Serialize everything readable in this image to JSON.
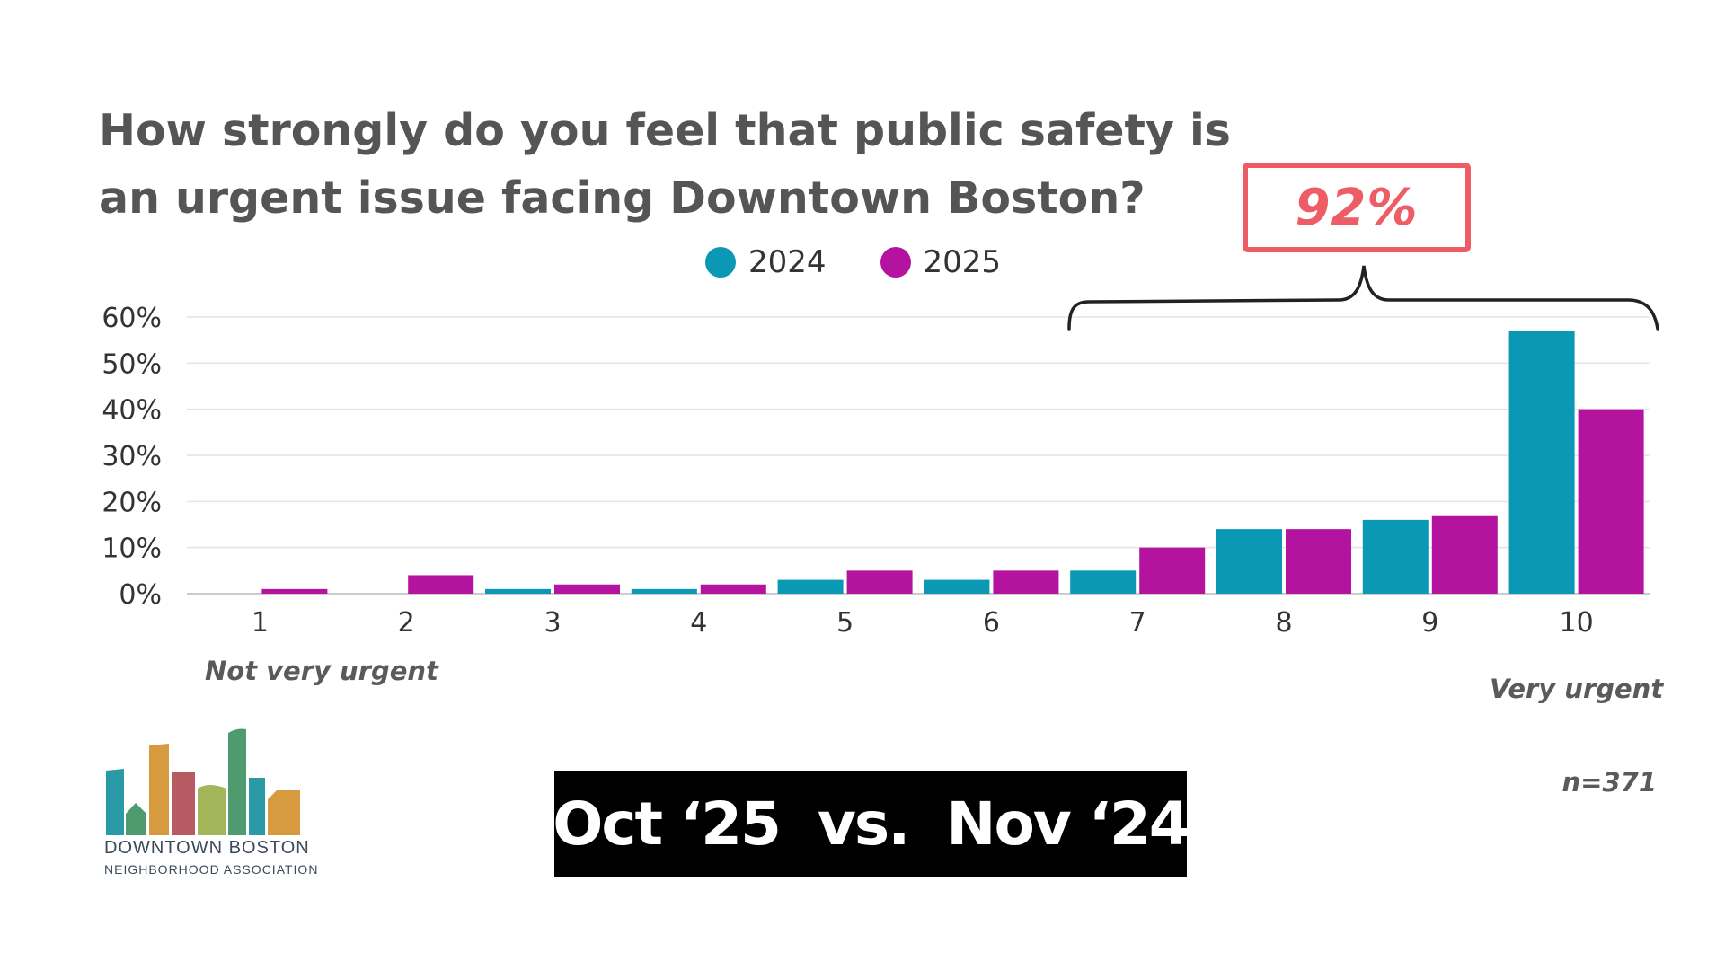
{
  "chart_data": {
    "type": "bar",
    "title": "How strongly do you feel that public safety is an urgent issue facing Downtown Boston?",
    "title_lines": [
      "How strongly do you feel that public safety is",
      "an urgent issue facing Downtown Boston?"
    ],
    "categories": [
      "1",
      "2",
      "3",
      "4",
      "5",
      "6",
      "7",
      "8",
      "9",
      "10"
    ],
    "series": [
      {
        "name": "2024",
        "color": "#0a98b4",
        "values": [
          0,
          0,
          1,
          1,
          3,
          3,
          5,
          14,
          16,
          57
        ]
      },
      {
        "name": "2025",
        "color": "#b4139f",
        "values": [
          1,
          4,
          2,
          2,
          5,
          5,
          10,
          14,
          17,
          40
        ]
      }
    ],
    "ylim": [
      0,
      60
    ],
    "yticks": [
      "0%",
      "10%",
      "20%",
      "30%",
      "40%",
      "50%",
      "60%"
    ],
    "grid": true,
    "legend_position": "top-center",
    "annotation": {
      "text": "92%",
      "spans_categories": [
        "7",
        "10"
      ],
      "color": "#ee5d66"
    }
  },
  "scale_labels": {
    "low": "Not very urgent",
    "high": "Very urgent"
  },
  "sample_size": "n=371",
  "banner": "Oct ‘25  vs.  Nov ‘24",
  "logo": {
    "line1": "DOWNTOWN BOSTON",
    "line2": "NEIGHBORHOOD ASSOCIATION",
    "colors": [
      "#2a9aa6",
      "#4f9a6e",
      "#d79a3e",
      "#b85a62",
      "#a3b65a",
      "#4f9a6e",
      "#2a9aa6",
      "#d79a3e"
    ]
  }
}
